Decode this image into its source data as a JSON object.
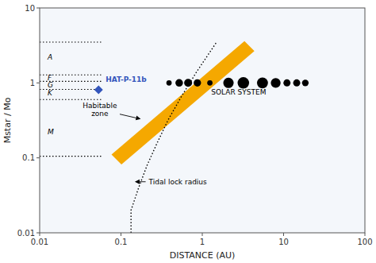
{
  "chart_data": {
    "type": "scatter",
    "log": true,
    "grid": false,
    "xlabel": "DISTANCE (AU)",
    "ylabel": "Mstar / Mo",
    "xlim": [
      0.01,
      100
    ],
    "ylim": [
      0.01,
      10
    ],
    "xticks": [
      0.01,
      0.1,
      1,
      10,
      100
    ],
    "yticks": [
      0.01,
      0.1,
      1,
      10
    ],
    "series": [
      {
        "type": "scatter",
        "marker": "circle",
        "color": "#000000",
        "x": [
          0.39,
          0.52,
          0.67,
          0.87,
          1.24,
          2.1,
          3.2,
          5.5,
          8.0,
          11.0,
          14.5,
          18.5
        ],
        "values": [
          1.0,
          1.0,
          1.0,
          1.0,
          1.0,
          1.0,
          1.0,
          1.0,
          1.0,
          1.0,
          1.0,
          1.0
        ],
        "sizes": [
          45,
          90,
          100,
          85,
          45,
          170,
          210,
          190,
          150,
          80,
          80,
          70
        ]
      },
      {
        "type": "scatter",
        "marker": "diamond",
        "color": "#3355bb",
        "x": [
          0.053
        ],
        "values": [
          0.81
        ]
      },
      {
        "type": "line",
        "line_style": "dotted",
        "color": "#000000",
        "x": [
          0.133,
          0.133,
          0.165,
          0.21,
          0.28,
          0.38,
          0.55,
          0.85,
          1.5
        ],
        "values": [
          0.01,
          0.02,
          0.04,
          0.08,
          0.16,
          0.32,
          0.65,
          1.4,
          3.5
        ]
      }
    ],
    "habitable_zone": {
      "x": [
        0.088,
        3.8
      ],
      "y": [
        0.095,
        3.1
      ],
      "half_width": 0.09,
      "color": "#f5a800"
    },
    "reference_lines": {
      "line_style": "dotted",
      "color": "#000000",
      "y": [
        3.5,
        1.28,
        1.05,
        0.82,
        0.6,
        0.105
      ],
      "xmin": [
        0.01,
        0.01,
        0.01,
        0.01,
        0.01,
        0.01
      ],
      "xmax": [
        0.06,
        0.06,
        0.06,
        0.06,
        0.06,
        0.06
      ]
    },
    "star_type_labels": [
      {
        "text": "A",
        "x": 0.0125,
        "y": 2.2
      },
      {
        "text": "F",
        "x": 0.0125,
        "y": 1.18
      },
      {
        "text": "G",
        "x": 0.0125,
        "y": 0.93
      },
      {
        "text": "K",
        "x": 0.0125,
        "y": 0.73
      },
      {
        "text": "M",
        "x": 0.0125,
        "y": 0.22
      }
    ],
    "annotations": [
      {
        "text": "HAT-P-11b",
        "x": 0.065,
        "y": 0.95,
        "color": "#3355bb"
      },
      {
        "text": "Habitable\nzone",
        "x": 0.055,
        "y": 0.44,
        "arrow_x": 0.175,
        "arrow_y": 0.33
      },
      {
        "text": "Tidal lock radius",
        "x": 0.22,
        "y": 0.048,
        "arrow_x": 0.148,
        "arrow_y": 0.048
      },
      {
        "text": "SOLAR SYSTEM",
        "x": 2.8,
        "y": 0.76
      }
    ]
  }
}
